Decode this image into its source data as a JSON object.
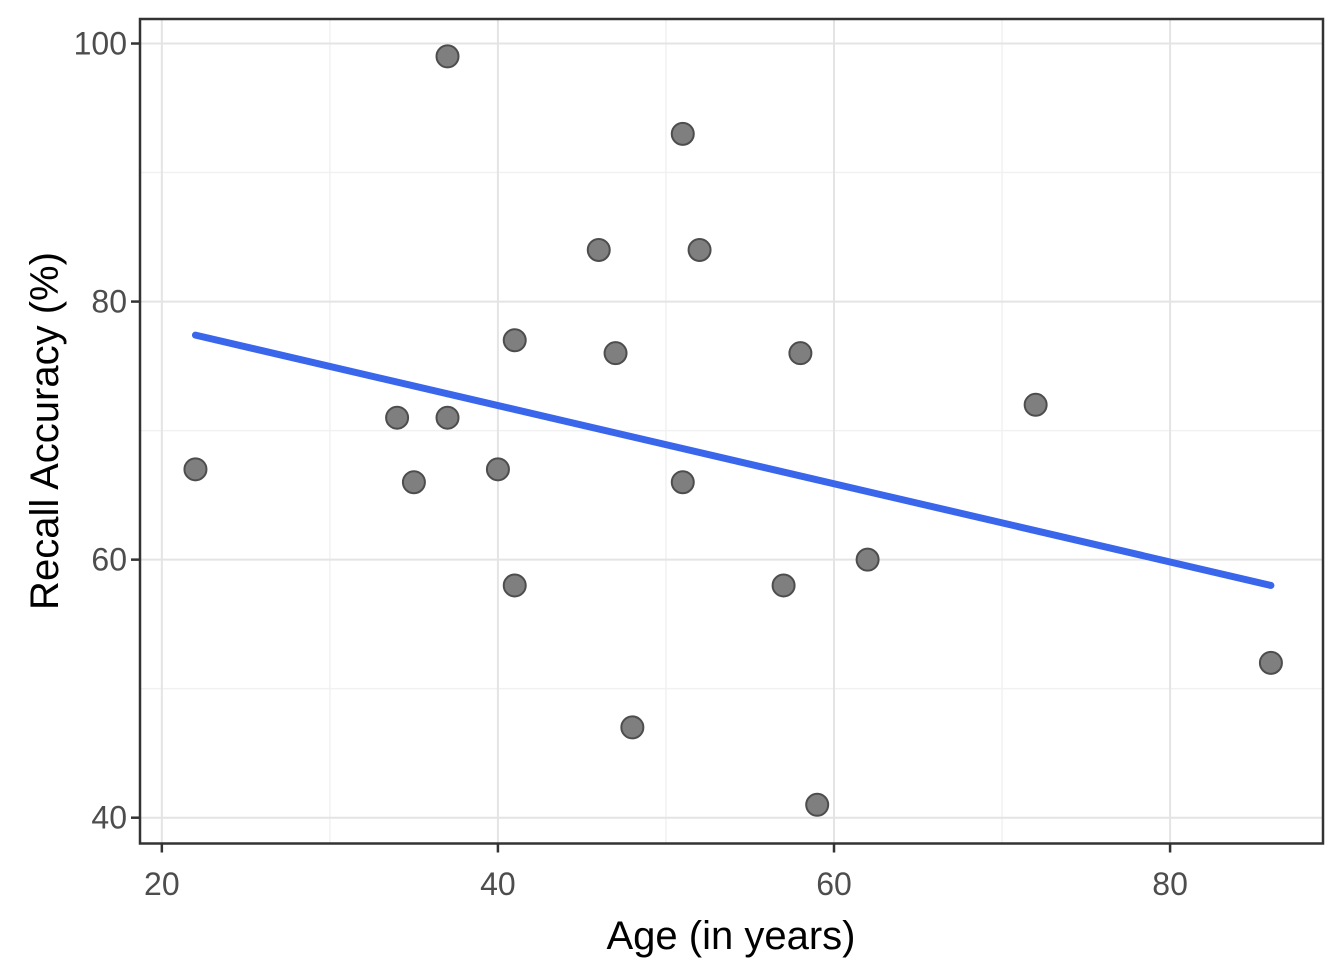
{
  "chart_data": {
    "type": "scatter",
    "title": "",
    "xlabel": "Age (in years)",
    "ylabel": "Recall Accuracy (%)",
    "x_tick_labels": [
      "20",
      "40",
      "60",
      "80"
    ],
    "x_ticks": [
      20,
      40,
      60,
      80
    ],
    "x_minor_gridlines": [
      30,
      50,
      70
    ],
    "y_tick_labels": [
      "40",
      "60",
      "80",
      "100"
    ],
    "y_ticks": [
      40,
      60,
      80,
      100
    ],
    "y_minor_gridlines": [
      50,
      70,
      90
    ],
    "xlim": [
      18.7,
      89.1
    ],
    "ylim": [
      38.0,
      101.9
    ],
    "grid": "on",
    "legend": "none",
    "points": [
      [
        22,
        67
      ],
      [
        34,
        71
      ],
      [
        35,
        66
      ],
      [
        37,
        99
      ],
      [
        37,
        71
      ],
      [
        40,
        67
      ],
      [
        41,
        77
      ],
      [
        41,
        58
      ],
      [
        46,
        84
      ],
      [
        47,
        76
      ],
      [
        48,
        47
      ],
      [
        51,
        93
      ],
      [
        51,
        66
      ],
      [
        52,
        84
      ],
      [
        57,
        58
      ],
      [
        58,
        76
      ],
      [
        59,
        41
      ],
      [
        62,
        60
      ],
      [
        72,
        72
      ],
      [
        86,
        52
      ]
    ],
    "trend_line": {
      "x_start": 22,
      "y_start": 77.4,
      "x_end": 86,
      "y_end": 58.0
    },
    "colors": {
      "point_fill": "#7f7f7f",
      "point_stroke": "#4d4d4d",
      "trend_line": "#3a66eb",
      "grid_major": "#e4e4e4",
      "grid_minor": "#f1f1f1",
      "panel_border": "#333333",
      "tick_mark": "#333333",
      "tick_label": "#4d4d4d",
      "axis_title": "#000000",
      "panel_background": "#ffffff"
    }
  }
}
